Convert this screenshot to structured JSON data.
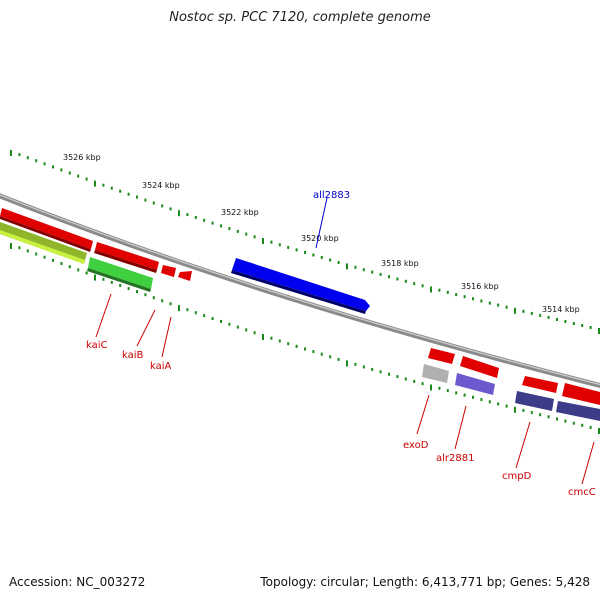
{
  "title": "Nostoc sp. PCC 7120, complete genome",
  "footer": {
    "accession": "Accession: NC_003272",
    "stats": "Topology: circular; Length: 6,413,771 bp; Genes: 5,428"
  },
  "colors": {
    "backbone": "#8a8a8a",
    "tick": "#1a8a1a",
    "red": "#e00000",
    "green": "#3fcf3f",
    "olive": "#8fb52a",
    "blue": "#0000ee",
    "navy": "#3c3c88",
    "gray": "#b0b0b0",
    "label_red": "#cc0000",
    "label_blue": "#0000cc"
  },
  "scale_ticks": [
    {
      "label": "3526 kbp"
    },
    {
      "label": "3524 kbp"
    },
    {
      "label": "3522 kbp"
    },
    {
      "label": "3520 kbp"
    },
    {
      "label": "3518 kbp"
    },
    {
      "label": "3516 kbp"
    },
    {
      "label": "3514 kbp"
    }
  ],
  "gene_labels": [
    {
      "name": "all2883",
      "color": "blue"
    },
    {
      "name": "kaiC",
      "color": "red"
    },
    {
      "name": "kaiB",
      "color": "red"
    },
    {
      "name": "kaiA",
      "color": "red"
    },
    {
      "name": "exoD",
      "color": "red"
    },
    {
      "name": "alr2881",
      "color": "red"
    },
    {
      "name": "cmpD",
      "color": "red"
    },
    {
      "name": "cmcC",
      "color": "red"
    }
  ]
}
